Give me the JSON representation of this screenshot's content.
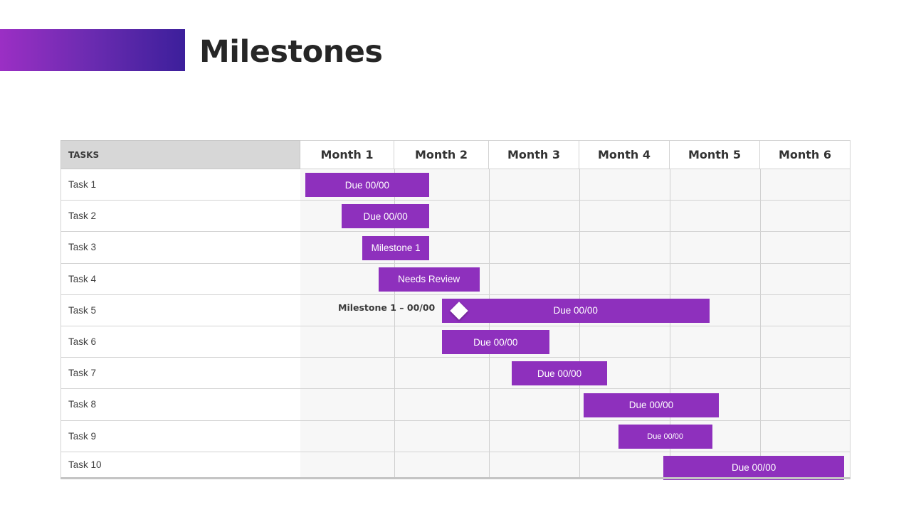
{
  "slide": {
    "title": "Milestones",
    "accent_gradient": [
      "#9b2fc4",
      "#3c1f9b"
    ]
  },
  "gantt": {
    "tasks_header": "TASKS",
    "months": [
      "Month 1",
      "Month 2",
      "Month 3",
      "Month 4",
      "Month 5",
      "Month 6"
    ],
    "tasks": [
      "Task 1",
      "Task 2",
      "Task 3",
      "Task 4",
      "Task 5",
      "Task 6",
      "Task 7",
      "Task 8",
      "Task 9",
      "Task 10"
    ],
    "bar_color": "#8e30bd",
    "bars": [
      {
        "task": "Task 1",
        "label": "Due 00/00",
        "start_month": 1.05,
        "end_month": 2.37
      },
      {
        "task": "Task 2",
        "label": "Due 00/00",
        "start_month": 1.44,
        "end_month": 2.37
      },
      {
        "task": "Task 3",
        "label": "Milestone 1",
        "start_month": 1.66,
        "end_month": 2.37
      },
      {
        "task": "Task 4",
        "label": "Needs Review",
        "start_month": 1.83,
        "end_month": 2.9
      },
      {
        "task": "Task 5",
        "label": "Due 00/00",
        "start_month": 2.5,
        "end_month": 5.44
      },
      {
        "task": "Task 6",
        "label": "Due 00/00",
        "start_month": 2.5,
        "end_month": 3.67
      },
      {
        "task": "Task 7",
        "label": "Due 00/00",
        "start_month": 3.25,
        "end_month": 4.31
      },
      {
        "task": "Task 8",
        "label": "Due 00/00",
        "start_month": 4.05,
        "end_month": 5.54
      },
      {
        "task": "Task 9",
        "label": "Due 00/00",
        "start_month": 4.43,
        "end_month": 5.47
      },
      {
        "task": "Task 10",
        "label": "Due 00/00",
        "start_month": 4.93,
        "end_month": 6.93
      }
    ],
    "milestone": {
      "task": "Task 5",
      "label": "Milestone 1 – 00/00",
      "month": 2.68,
      "marker": "diamond-icon"
    }
  }
}
